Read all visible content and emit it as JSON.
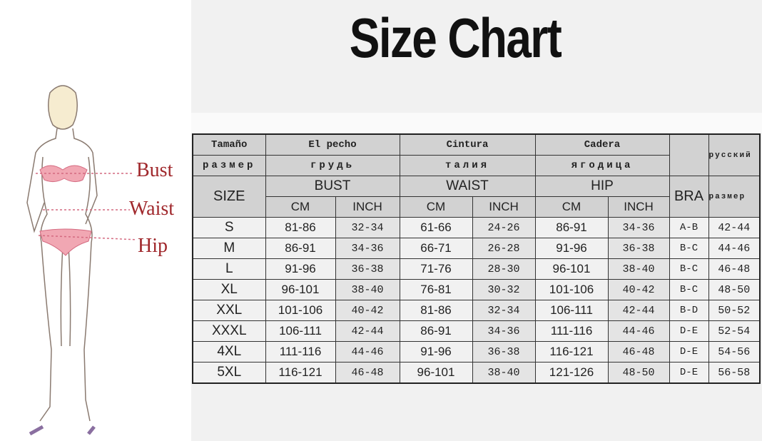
{
  "title": "Size Chart",
  "figure": {
    "labels": [
      "Bust",
      "Waist",
      "Hip"
    ],
    "accent": "#a0282c"
  },
  "table": {
    "header_es": [
      "Tamaño",
      "El pecho",
      "Cintura",
      "Cadera"
    ],
    "header_ru": [
      "размер",
      "грудь",
      "талия",
      "ягодица"
    ],
    "header_ru_col1": "русский",
    "header_ru_col2": "размер",
    "header_en": [
      "SIZE",
      "BUST",
      "WAIST",
      "HIP",
      "BRA"
    ],
    "units": [
      "CM",
      "INCH",
      "CM",
      "INCH",
      "CM",
      "INCH"
    ],
    "rows": [
      [
        "S",
        "81-86",
        "32-34",
        "61-66",
        "24-26",
        "86-91",
        "34-36",
        "A-B",
        "42-44"
      ],
      [
        "M",
        "86-91",
        "34-36",
        "66-71",
        "26-28",
        "91-96",
        "36-38",
        "B-C",
        "44-46"
      ],
      [
        "L",
        "91-96",
        "36-38",
        "71-76",
        "28-30",
        "96-101",
        "38-40",
        "B-C",
        "46-48"
      ],
      [
        "XL",
        "96-101",
        "38-40",
        "76-81",
        "30-32",
        "101-106",
        "40-42",
        "B-C",
        "48-50"
      ],
      [
        "XXL",
        "101-106",
        "40-42",
        "81-86",
        "32-34",
        "106-111",
        "42-44",
        "B-D",
        "50-52"
      ],
      [
        "XXXL",
        "106-111",
        "42-44",
        "86-91",
        "34-36",
        "111-116",
        "44-46",
        "D-E",
        "52-54"
      ],
      [
        "4XL",
        "111-116",
        "44-46",
        "91-96",
        "36-38",
        "116-121",
        "46-48",
        "D-E",
        "54-56"
      ],
      [
        "5XL",
        "116-121",
        "46-48",
        "96-101",
        "38-40",
        "121-126",
        "48-50",
        "D-E",
        "56-58"
      ]
    ]
  }
}
